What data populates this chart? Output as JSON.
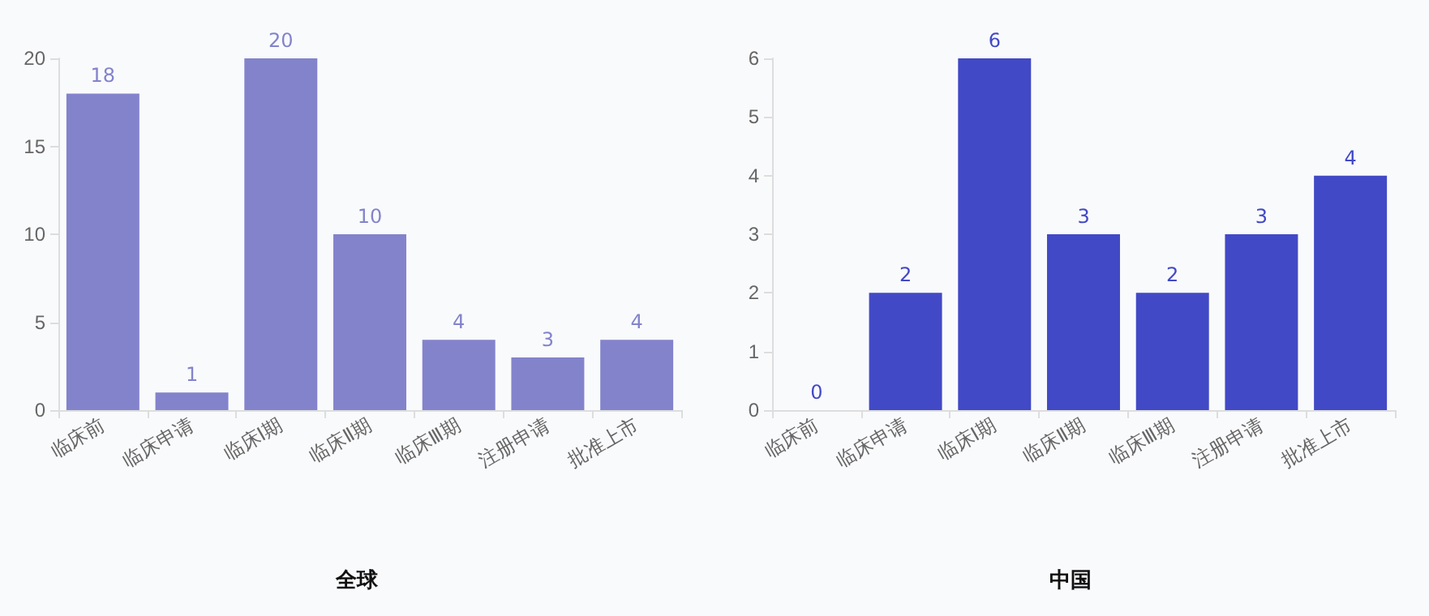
{
  "chart_data": [
    {
      "type": "bar",
      "title": "全球",
      "categories": [
        "临床前",
        "临床申请",
        "临床Ⅰ期",
        "临床Ⅱ期",
        "临床Ⅲ期",
        "注册申请",
        "批准上市"
      ],
      "series": [
        {
          "color": "#8383cc",
          "values": [
            18,
            1,
            20,
            10,
            4,
            3,
            4
          ]
        }
      ],
      "ylim": [
        0,
        20
      ],
      "yticks": [
        0,
        5,
        10,
        15,
        20
      ],
      "data_labels": true
    },
    {
      "type": "bar",
      "title": "中国",
      "categories": [
        "临床前",
        "临床申请",
        "临床Ⅰ期",
        "临床Ⅱ期",
        "临床Ⅲ期",
        "注册申请",
        "批准上市"
      ],
      "series": [
        {
          "color": "#4249c6",
          "values": [
            0,
            2,
            6,
            3,
            2,
            3,
            4
          ]
        }
      ],
      "ylim": [
        0,
        6
      ],
      "yticks": [
        0,
        1,
        2,
        3,
        4,
        5,
        6
      ],
      "data_labels": true
    }
  ]
}
